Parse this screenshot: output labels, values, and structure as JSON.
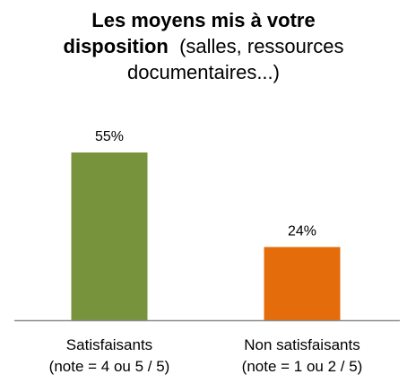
{
  "chart_data": {
    "type": "bar",
    "title_line1": "Les moyens mis à votre",
    "title_bold2": "disposition",
    "title_rest2": "(salles, ressources",
    "title_line3": "documentaires...)",
    "ylim": [
      0,
      60
    ],
    "categories": [
      {
        "line1": "Satisfaisants",
        "line2": "(note = 4 ou 5 / 5)"
      },
      {
        "line1": "Non satisfaisants",
        "line2": "(note = 1 ou 2 / 5)"
      }
    ],
    "values": [
      55,
      24
    ],
    "value_labels": [
      "55%",
      "24%"
    ],
    "colors": [
      "#77933C",
      "#E46C0A"
    ]
  }
}
